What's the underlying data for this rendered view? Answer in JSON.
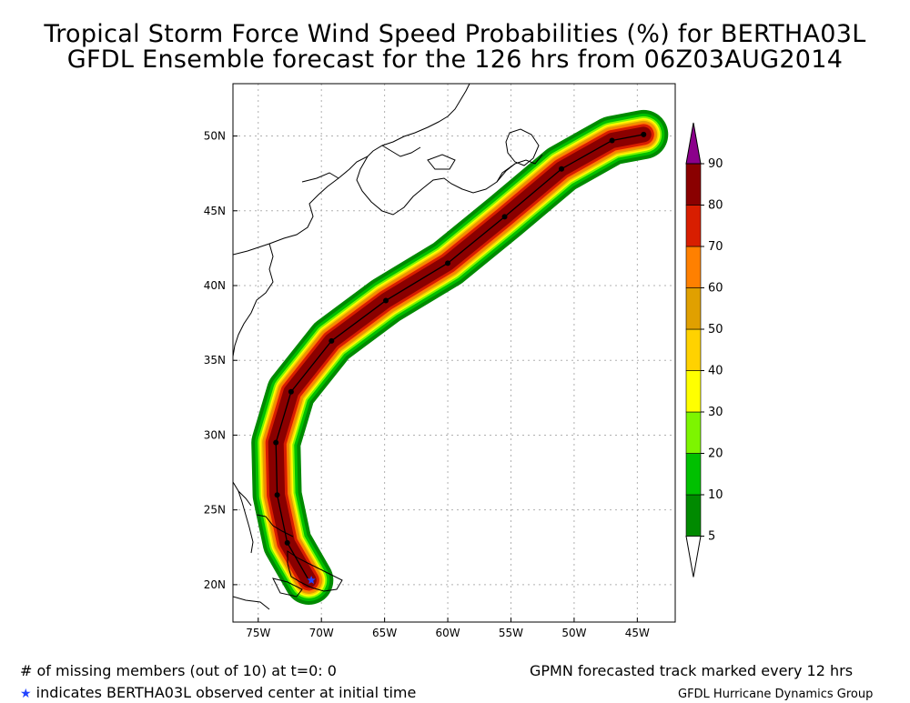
{
  "title": {
    "line1": "Tropical Storm Force Wind Speed Probabilities (%) for BERTHA03L",
    "line2": "GFDL Ensemble forecast for the 126 hrs from 06Z03AUG2014"
  },
  "map": {
    "lon_range": [
      -77,
      -42
    ],
    "lat_range": [
      17.5,
      53.5
    ],
    "lon_ticks": [
      {
        "value": -75,
        "label": "75W"
      },
      {
        "value": -70,
        "label": "70W"
      },
      {
        "value": -65,
        "label": "65W"
      },
      {
        "value": -60,
        "label": "60W"
      },
      {
        "value": -55,
        "label": "55W"
      },
      {
        "value": -50,
        "label": "50W"
      },
      {
        "value": -45,
        "label": "45W"
      }
    ],
    "lat_ticks": [
      {
        "value": 20,
        "label": "20N"
      },
      {
        "value": 25,
        "label": "25N"
      },
      {
        "value": 30,
        "label": "30N"
      },
      {
        "value": 35,
        "label": "35N"
      },
      {
        "value": 40,
        "label": "40N"
      },
      {
        "value": 45,
        "label": "45N"
      },
      {
        "value": 50,
        "label": "50N"
      }
    ],
    "grid": true,
    "track_points": [
      {
        "lon": -71.0,
        "lat": 20.3
      },
      {
        "lon": -72.7,
        "lat": 22.8
      },
      {
        "lon": -73.5,
        "lat": 26.0
      },
      {
        "lon": -73.6,
        "lat": 29.5
      },
      {
        "lon": -72.4,
        "lat": 32.9
      },
      {
        "lon": -69.2,
        "lat": 36.3
      },
      {
        "lon": -64.9,
        "lat": 39.0
      },
      {
        "lon": -60.0,
        "lat": 41.5
      },
      {
        "lon": -55.5,
        "lat": 44.6
      },
      {
        "lon": -51.0,
        "lat": 47.8
      },
      {
        "lon": -47.0,
        "lat": 49.7
      },
      {
        "lon": -44.5,
        "lat": 50.1
      }
    ],
    "observed_center": {
      "lon": -70.8,
      "lat": 20.3
    }
  },
  "legend": {
    "levels": [
      "5",
      "10",
      "20",
      "30",
      "40",
      "50",
      "60",
      "70",
      "80",
      "90"
    ],
    "colors": [
      "#ffffff",
      "#008a00",
      "#00c000",
      "#7df500",
      "#ffff00",
      "#ffd200",
      "#e0a000",
      "#ff8000",
      "#d81e00",
      "#8a0000",
      "#8b008b"
    ]
  },
  "footer": {
    "missing": "# of missing members (out of 10) at t=0: 0",
    "star_note": "indicates BERTHA03L observed center at initial time",
    "track_note": "GPMN forecasted track marked every 12 hrs",
    "credit": "GFDL Hurricane Dynamics Group"
  }
}
